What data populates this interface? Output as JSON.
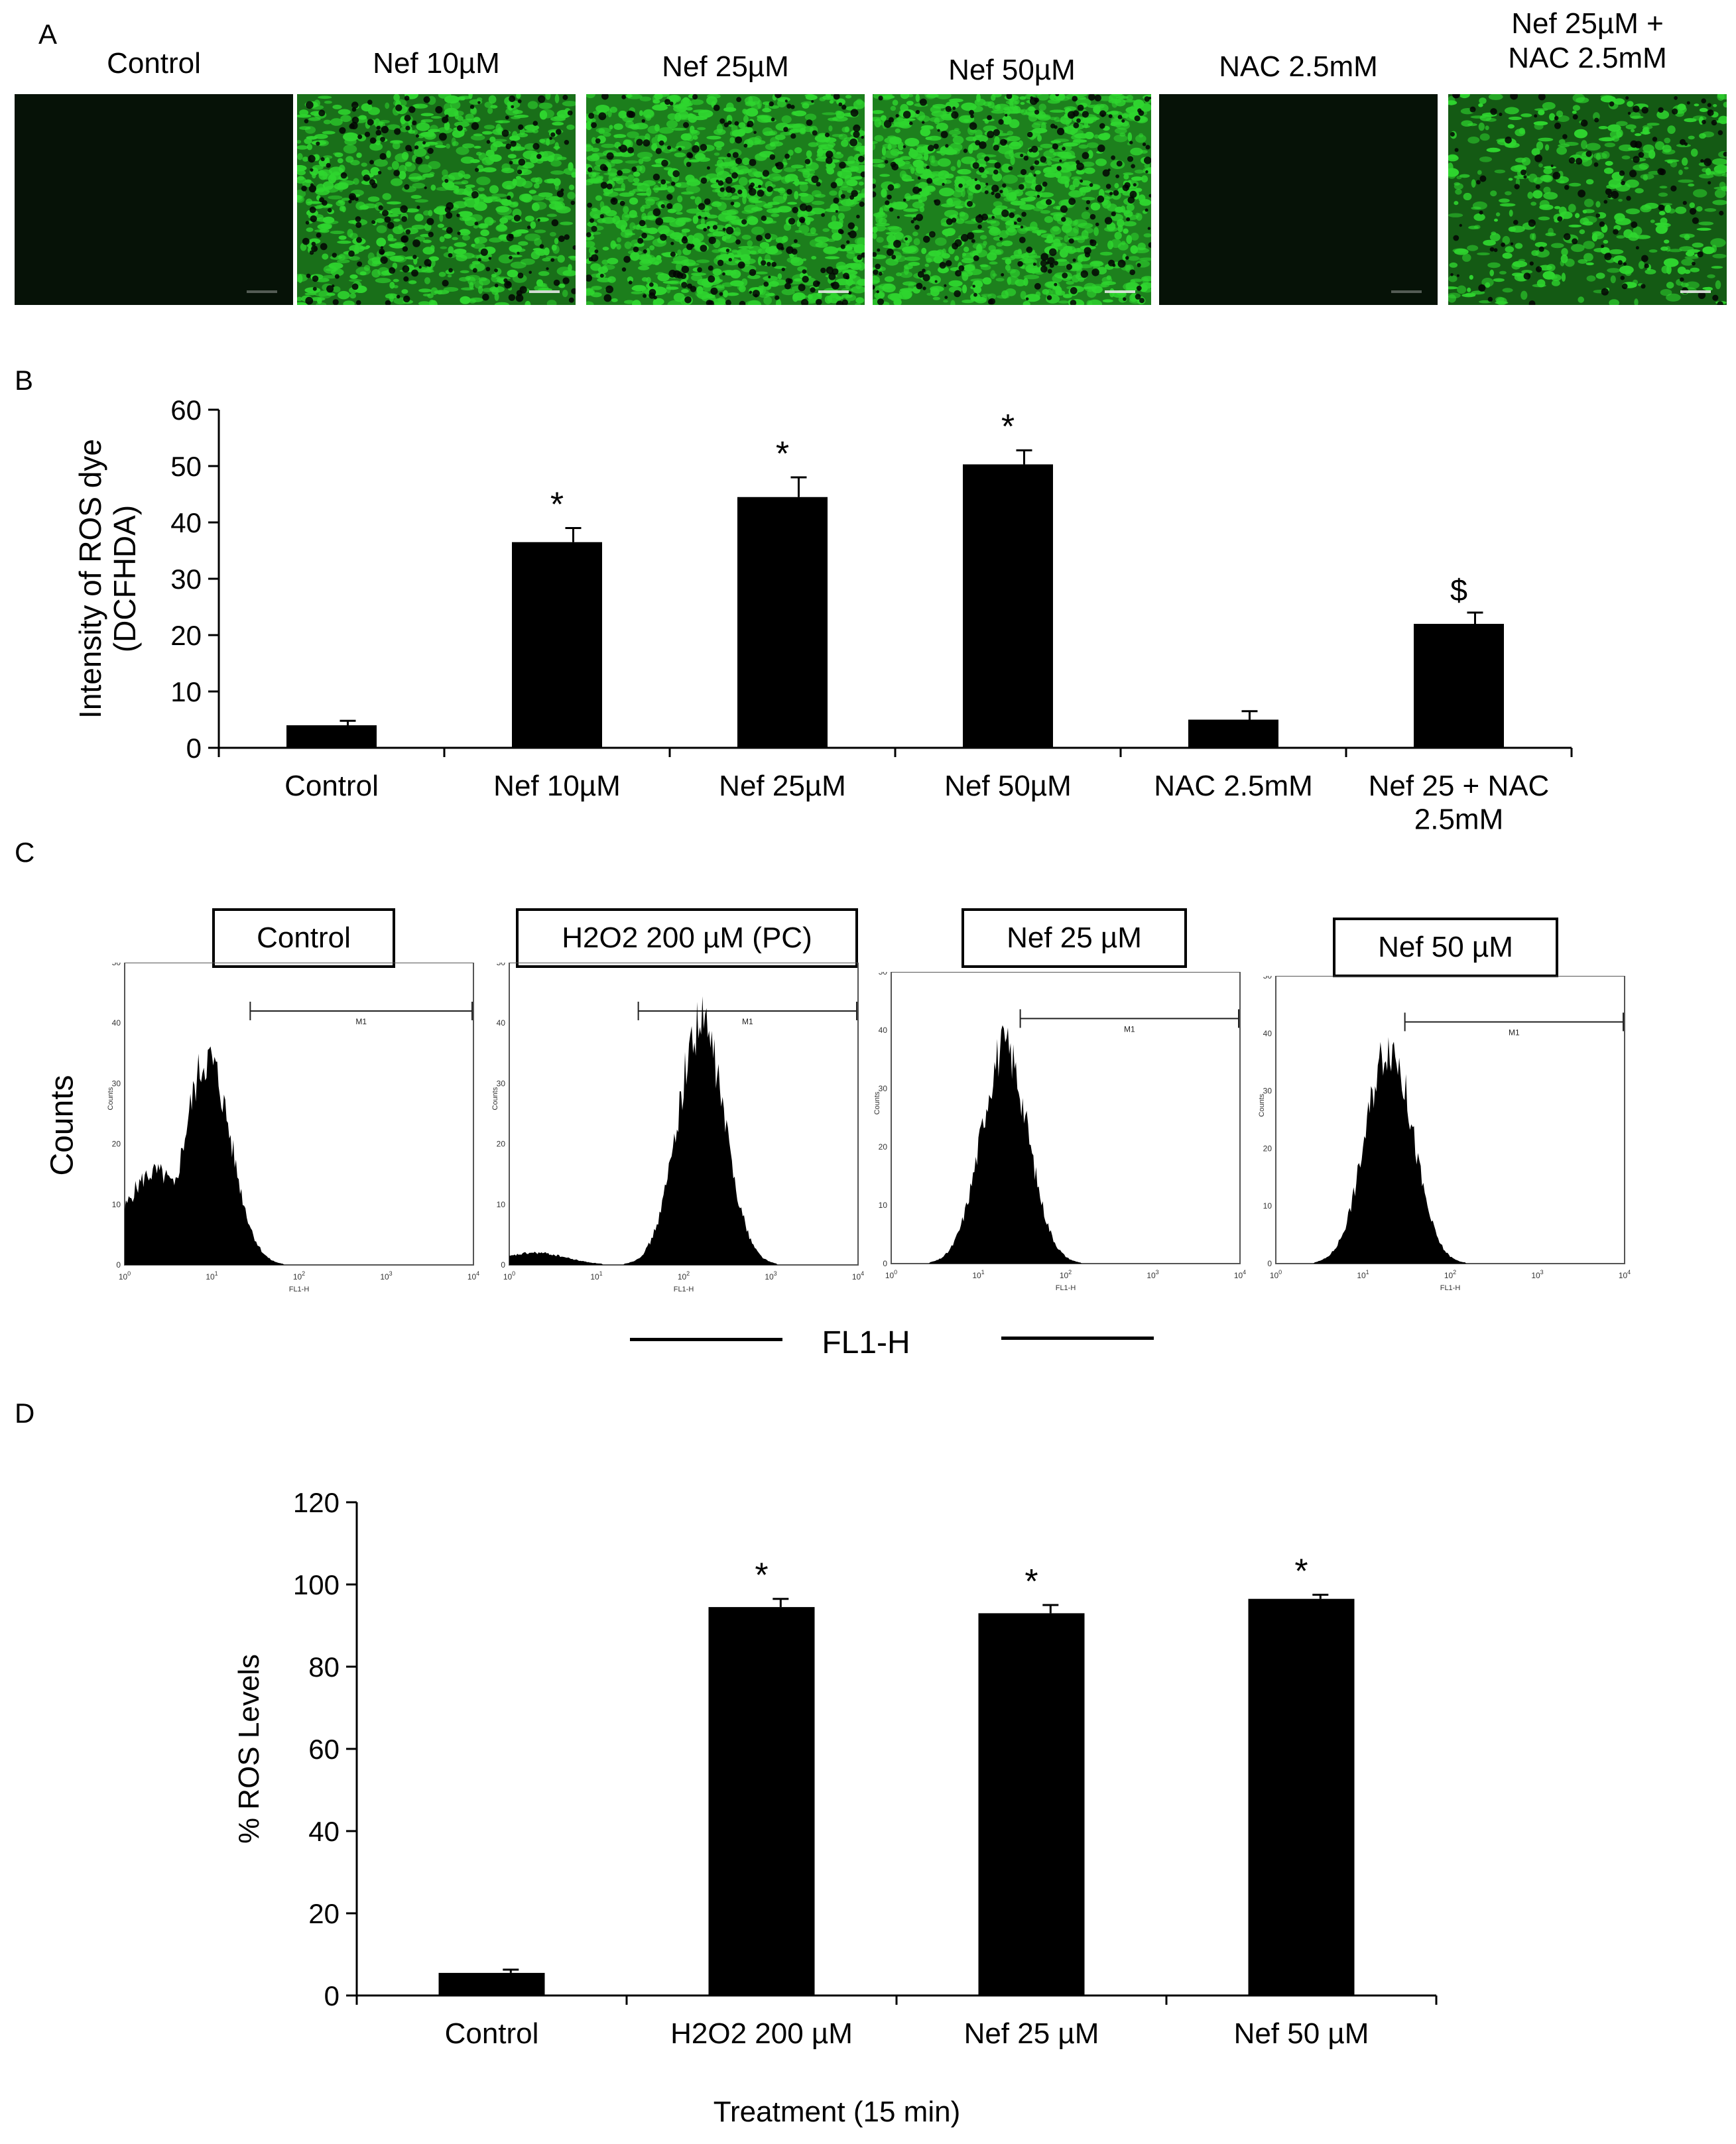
{
  "panel_letters": {
    "a": "A",
    "b": "B",
    "c": "C",
    "d": "D"
  },
  "panel_a": {
    "labels": [
      "Control",
      "Nef 10µM",
      "Nef 25µM",
      "Nef 50µM",
      "NAC 2.5mM",
      "Nef 25µM +\nNAC 2.5mM"
    ],
    "fluorescence_levels": [
      0.02,
      0.75,
      0.95,
      0.97,
      0.03,
      0.45
    ],
    "colors": {
      "green": "#2fd62f",
      "background": "#030503"
    }
  },
  "panel_c": {
    "box_labels": [
      "Control",
      "H2O2 200 µM (PC)",
      "Nef 25 µM",
      "Nef 50 µM"
    ],
    "ylabel": "Counts",
    "xlabel": "FL1-H",
    "small_axis_label_y": "Counts",
    "small_axis_label_x": "FL1-H",
    "gate_label": "M1",
    "y_ticks": [
      "0",
      "10",
      "20",
      "30",
      "40",
      "50"
    ],
    "x_tick_exponents": [
      "0",
      "1",
      "2",
      "3",
      "4"
    ],
    "peak_log_positions": [
      0.95,
      2.2,
      1.3,
      1.3
    ],
    "peak_heights": [
      34,
      40,
      37,
      38
    ]
  },
  "chart_data": [
    {
      "type": "bar",
      "panel": "B",
      "categories": [
        "Control",
        "Nef 10µM",
        "Nef 25µM",
        "Nef 50µM",
        "NAC 2.5mM",
        "Nef 25 + NAC\n2.5mM"
      ],
      "values": [
        4,
        36.5,
        44.5,
        50.3,
        5,
        22
      ],
      "errors": [
        0.8,
        2.5,
        3.5,
        2.5,
        1.5,
        2
      ],
      "annotations": [
        "",
        "*",
        "*",
        "*",
        "",
        "$"
      ],
      "ylabel": "Intensity of ROS dye\n(DCFHDA)",
      "xlabel": "",
      "ylim": [
        0,
        60
      ],
      "yticks": [
        0,
        10,
        20,
        30,
        40,
        50,
        60
      ],
      "grid": false,
      "color": "#000000"
    },
    {
      "type": "bar",
      "panel": "D",
      "categories": [
        "Control",
        "H2O2 200 µM",
        "Nef 25 µM",
        "Nef 50 µM"
      ],
      "values": [
        5.5,
        94.5,
        93,
        96.5
      ],
      "errors": [
        0.8,
        2,
        2,
        1
      ],
      "annotations": [
        "",
        "*",
        "*",
        "*"
      ],
      "ylabel": "% ROS Levels",
      "xlabel": "Treatment (15 min)",
      "ylim": [
        0,
        120
      ],
      "yticks": [
        0,
        20,
        40,
        60,
        80,
        100,
        120
      ],
      "grid": false,
      "color": "#000000"
    }
  ]
}
